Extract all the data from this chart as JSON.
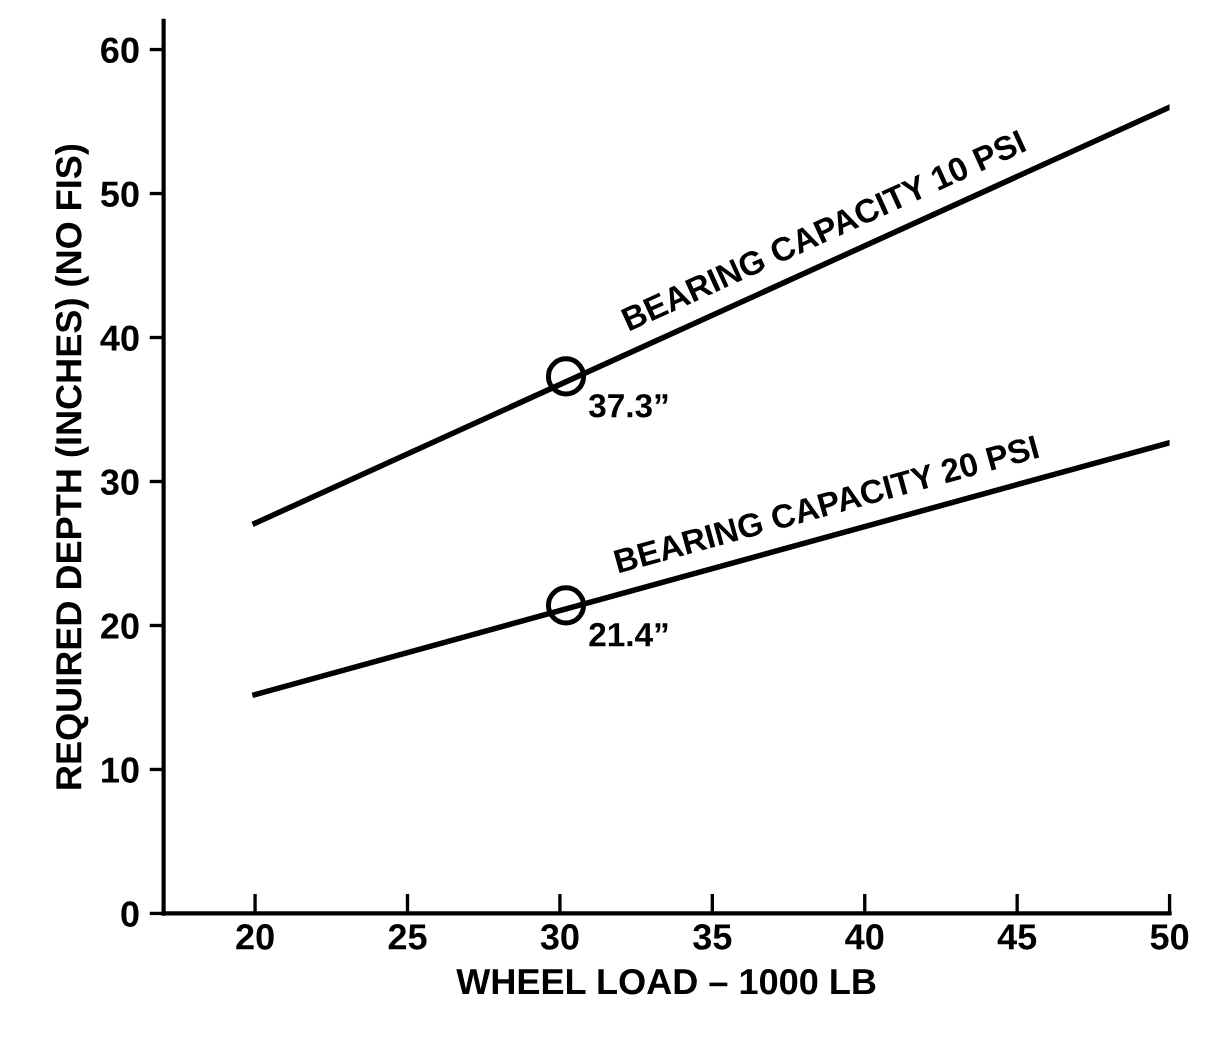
{
  "chart_data": {
    "type": "line",
    "xlabel": "WHEEL LOAD – 1000 LB",
    "ylabel": "REQUIRED DEPTH (INCHES) (NO FIS)",
    "xlim": [
      17,
      50
    ],
    "ylim": [
      0,
      62
    ],
    "xticks": [
      20,
      25,
      30,
      35,
      40,
      45,
      50
    ],
    "yticks": [
      0,
      10,
      20,
      30,
      40,
      50,
      60
    ],
    "grid": false,
    "series": [
      {
        "name": "BEARING CAPACITY 10 PSI",
        "color": "#000000",
        "x": [
          20,
          50
        ],
        "values": [
          27.1,
          56.0
        ]
      },
      {
        "name": "BEARING CAPACITY 20 PSI",
        "color": "#000000",
        "x": [
          20,
          50
        ],
        "values": [
          15.2,
          32.7
        ]
      },
      {
        "type": "scatter",
        "marker": "circle",
        "color": "#000000",
        "x": [
          30.2
        ],
        "values": [
          37.3
        ],
        "value_labels": [
          "37.3”"
        ]
      },
      {
        "type": "scatter",
        "marker": "circle",
        "color": "#000000",
        "x": [
          30.2
        ],
        "values": [
          21.4
        ],
        "value_labels": [
          "21.4”"
        ]
      }
    ]
  }
}
